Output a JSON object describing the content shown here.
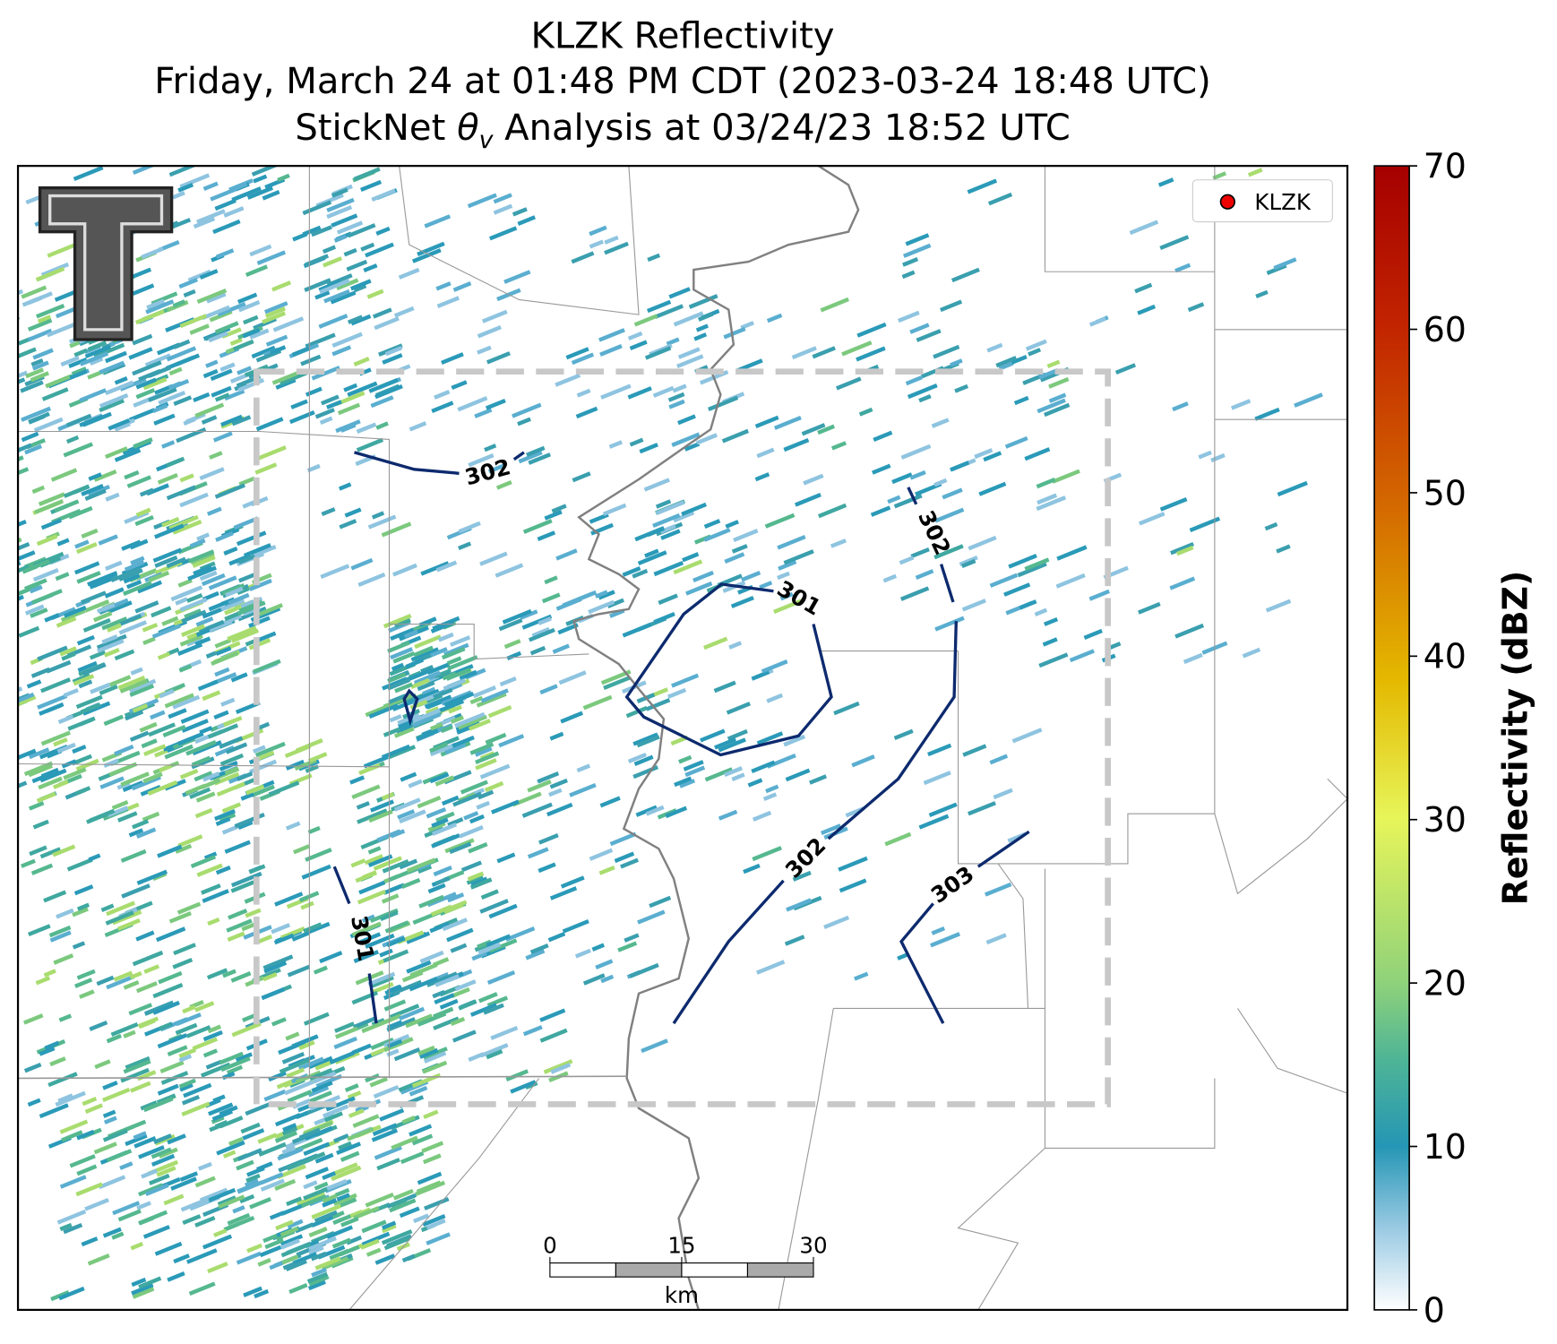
{
  "title": {
    "line1": "KLZK Reflectivity",
    "line2": "Friday, March 24 at 01:48 PM CDT (2023-03-24 18:48 UTC)",
    "line3": {
      "before": "StickNet ",
      "symbol": "θ",
      "subscript": "v",
      "after": " Analysis at 03/24/23 18:52 UTC"
    }
  },
  "legend": {
    "label": "KLZK"
  },
  "colorbar": {
    "label": "Reflectivity (dBZ)",
    "lim": [
      0,
      70
    ],
    "ticks": [
      0,
      10,
      20,
      30,
      40,
      50,
      60,
      70
    ]
  },
  "contour_labels": [
    302,
    301,
    302,
    302,
    303,
    301
  ],
  "scale_bar": {
    "ticks": [
      0,
      15,
      30
    ],
    "unit": "km"
  }
}
